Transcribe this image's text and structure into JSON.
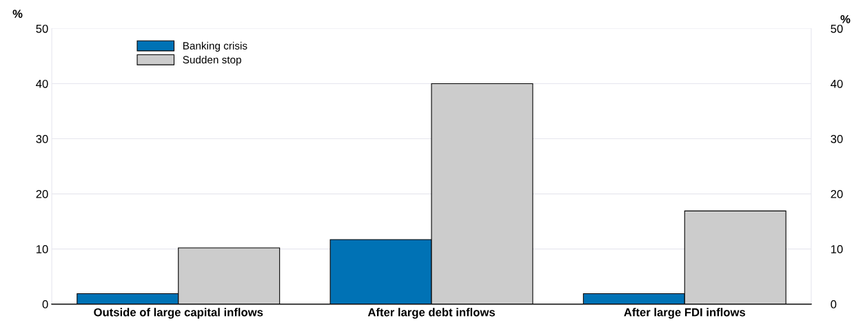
{
  "chart_data": {
    "type": "bar",
    "categories": [
      "Outside of large capital inflows",
      "After large debt inflows",
      "After large FDI inflows"
    ],
    "series": [
      {
        "name": "Banking crisis",
        "color": "#0072b5",
        "values": [
          1.9,
          11.7,
          1.9
        ]
      },
      {
        "name": "Sudden stop",
        "color": "#cccccc",
        "values": [
          10.2,
          40.0,
          16.9
        ]
      }
    ],
    "ylabel": "%",
    "y2label": "%",
    "ylim": [
      0,
      50
    ],
    "yticks": [
      0,
      10,
      20,
      30,
      40,
      50
    ],
    "y2lim": [
      0,
      50
    ],
    "y2ticks": [
      0,
      10,
      20,
      30,
      40,
      50
    ],
    "grid": "y",
    "legend": "top left"
  }
}
